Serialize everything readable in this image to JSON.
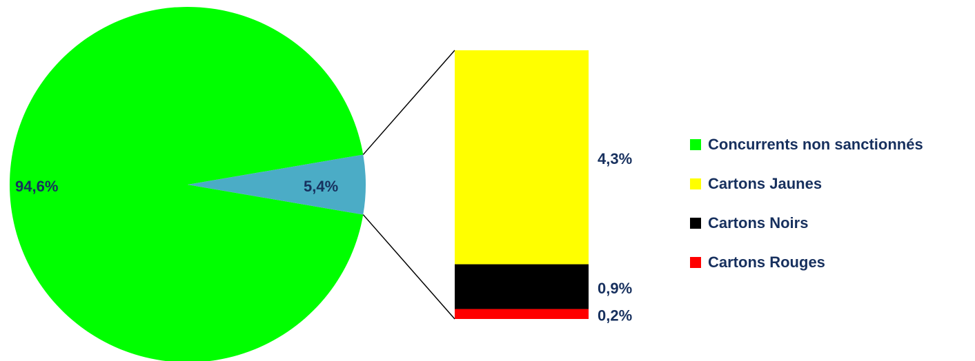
{
  "chart_data": {
    "type": "pie-of-bar",
    "categories": [
      "Concurrents non sanctionnés",
      "Cartons Jaunes",
      "Cartons Noirs",
      "Cartons Rouges"
    ],
    "values": [
      94.6,
      4.3,
      0.9,
      0.2
    ],
    "value_labels": [
      "94,6%",
      "4,3%",
      "0,9%",
      "0,2%"
    ],
    "colors": [
      "#00ff00",
      "#ffff00",
      "#000000",
      "#ff0000"
    ],
    "other": {
      "value": 5.4,
      "value_label": "5,4%",
      "color": "#4bacc6"
    }
  }
}
